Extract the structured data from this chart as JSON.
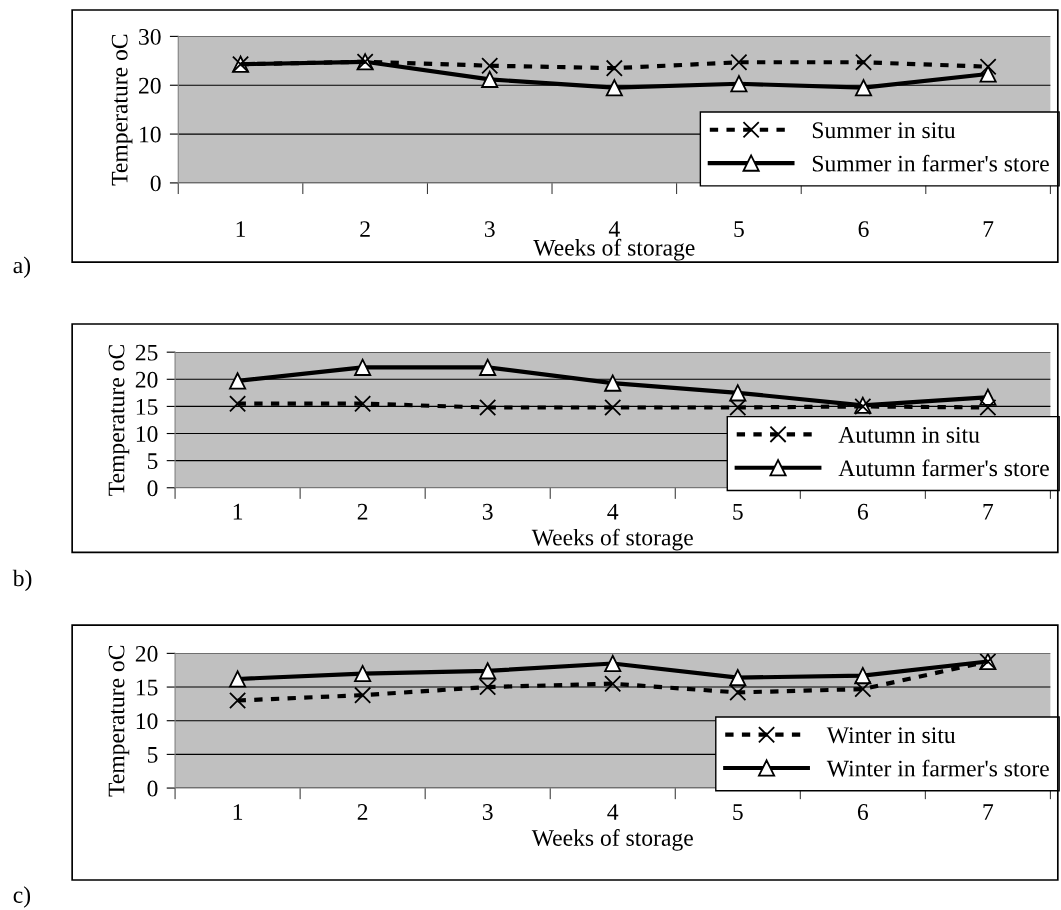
{
  "chart_data": [
    {
      "type": "line",
      "categories": [
        "1",
        "2",
        "3",
        "4",
        "5",
        "6",
        "7"
      ],
      "xlabel": "Weeks of storage",
      "ylabel": "Temperature oC",
      "ylim": [
        0,
        30
      ],
      "yticks": [
        0,
        10,
        20,
        30
      ],
      "grid": "y",
      "legend": "bottom right",
      "annotations": [
        "a)"
      ],
      "series": [
        {
          "name": "Summer in situ",
          "color": "#000000",
          "line_style": "dashed",
          "marker": "cross",
          "values": [
            24.3,
            24.8,
            24.0,
            23.5,
            24.7,
            24.7,
            23.8
          ]
        },
        {
          "name": "Summer in farmer's store",
          "color": "#000000",
          "line_style": "solid",
          "marker": "triangle",
          "values": [
            24.3,
            24.8,
            21.2,
            19.5,
            20.3,
            19.5,
            22.3
          ]
        }
      ]
    },
    {
      "type": "line",
      "categories": [
        "1",
        "2",
        "3",
        "4",
        "5",
        "6",
        "7"
      ],
      "xlabel": "Weeks of storage",
      "ylabel": "Temperature oC",
      "ylim": [
        0,
        25
      ],
      "yticks": [
        0,
        5,
        10,
        15,
        20,
        25
      ],
      "grid": "y",
      "legend": "bottom right",
      "annotations": [
        "b)"
      ],
      "series": [
        {
          "name": "Autumn in situ",
          "color": "#000000",
          "line_style": "dashed",
          "marker": "cross",
          "values": [
            15.5,
            15.5,
            14.8,
            14.8,
            14.8,
            15.0,
            14.8
          ]
        },
        {
          "name": "Autumn farmer's store",
          "color": "#000000",
          "line_style": "solid",
          "marker": "triangle",
          "values": [
            19.7,
            22.2,
            22.2,
            19.3,
            17.5,
            15.2,
            16.7
          ]
        }
      ]
    },
    {
      "type": "line",
      "categories": [
        "1",
        "2",
        "3",
        "4",
        "5",
        "6",
        "7"
      ],
      "xlabel": "Weeks of storage",
      "ylabel": "Temperature oC",
      "ylim": [
        0,
        20
      ],
      "yticks": [
        0,
        5,
        10,
        15,
        20
      ],
      "grid": "y",
      "legend": "bottom right",
      "annotations": [
        "c)"
      ],
      "series": [
        {
          "name": "Winter in situ",
          "color": "#000000",
          "line_style": "dashed",
          "marker": "cross",
          "values": [
            13.0,
            13.8,
            15.0,
            15.5,
            14.2,
            14.7,
            18.8
          ]
        },
        {
          "name": "Winter in farmer's store",
          "color": "#000000",
          "line_style": "solid",
          "marker": "triangle",
          "values": [
            16.2,
            17.0,
            17.4,
            18.5,
            16.4,
            16.7,
            18.8
          ]
        }
      ]
    }
  ]
}
